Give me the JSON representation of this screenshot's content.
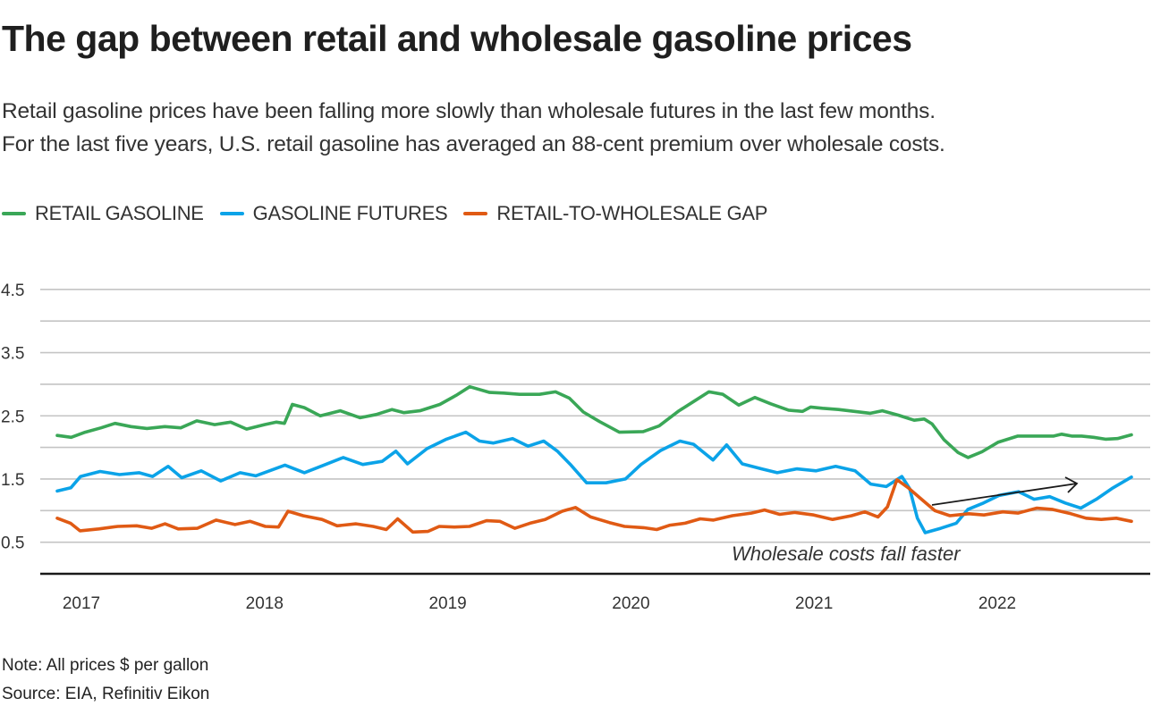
{
  "header": {
    "title": "The gap between retail and wholesale gasoline prices",
    "subtitle_line1": "Retail gasoline prices have been falling more slowly than wholesale futures in the last few months.",
    "subtitle_line2": "For the last five years, U.S. retail gasoline has averaged an 88-cent premium over wholesale costs."
  },
  "footer": {
    "note": "Note: All prices $ per gallon",
    "source": "Source: EIA, Refinitiv Eikon"
  },
  "chart_data": {
    "type": "line",
    "title": "The gap between retail and wholesale gasoline prices",
    "xlabel": "",
    "ylabel": "$ per gallon",
    "xlim": [
      2016.85,
      2022.8
    ],
    "ylim": [
      0,
      5
    ],
    "y_ticks": [
      0.5,
      1.5,
      2.5,
      3.5,
      4.5
    ],
    "y_gridlines": [
      0.5,
      1.0,
      1.5,
      2.0,
      2.5,
      3.0,
      3.5,
      4.0,
      4.5
    ],
    "x_ticks": [
      2017,
      2018,
      2019,
      2020,
      2021,
      2022
    ],
    "x_tick_labels": [
      "2017",
      "2018",
      "2019",
      "2020",
      "2021",
      "2022"
    ],
    "grid": true,
    "legend_position": "top-left",
    "annotation": {
      "text": "Wholesale costs fall faster",
      "arrow_from": [
        2021.65,
        0.75
      ],
      "arrow_to": [
        2022.45,
        1.42
      ]
    },
    "series": [
      {
        "name": "RETAIL GASOLINE",
        "color": "#3aa757",
        "points": [
          [
            2016.88,
            2.19
          ],
          [
            2016.95,
            2.16
          ],
          [
            2017.02,
            2.24
          ],
          [
            2017.1,
            2.31
          ],
          [
            2017.17,
            2.38
          ],
          [
            2017.25,
            2.33
          ],
          [
            2017.33,
            2.3
          ],
          [
            2017.42,
            2.33
          ],
          [
            2017.5,
            2.31
          ],
          [
            2017.58,
            2.42
          ],
          [
            2017.67,
            2.36
          ],
          [
            2017.75,
            2.4
          ],
          [
            2017.83,
            2.29
          ],
          [
            2017.92,
            2.36
          ],
          [
            2017.98,
            2.4
          ],
          [
            2018.02,
            2.38
          ],
          [
            2018.06,
            2.68
          ],
          [
            2018.12,
            2.63
          ],
          [
            2018.2,
            2.5
          ],
          [
            2018.3,
            2.58
          ],
          [
            2018.4,
            2.47
          ],
          [
            2018.48,
            2.52
          ],
          [
            2018.56,
            2.6
          ],
          [
            2018.62,
            2.55
          ],
          [
            2018.7,
            2.58
          ],
          [
            2018.8,
            2.68
          ],
          [
            2018.88,
            2.82
          ],
          [
            2018.95,
            2.96
          ],
          [
            2019.05,
            2.87
          ],
          [
            2019.12,
            2.86
          ],
          [
            2019.2,
            2.84
          ],
          [
            2019.3,
            2.84
          ],
          [
            2019.38,
            2.88
          ],
          [
            2019.45,
            2.78
          ],
          [
            2019.52,
            2.56
          ],
          [
            2019.6,
            2.41
          ],
          [
            2019.7,
            2.24
          ],
          [
            2019.82,
            2.25
          ],
          [
            2019.9,
            2.34
          ],
          [
            2020.0,
            2.58
          ],
          [
            2020.08,
            2.74
          ],
          [
            2020.15,
            2.88
          ],
          [
            2020.22,
            2.84
          ],
          [
            2020.3,
            2.67
          ],
          [
            2020.38,
            2.79
          ],
          [
            2020.46,
            2.69
          ],
          [
            2020.55,
            2.59
          ],
          [
            2020.62,
            2.57
          ],
          [
            2020.66,
            2.64
          ],
          [
            2020.72,
            2.62
          ],
          [
            2020.8,
            2.6
          ],
          [
            2020.88,
            2.57
          ],
          [
            2020.96,
            2.54
          ],
          [
            2021.02,
            2.58
          ],
          [
            2021.1,
            2.51
          ],
          [
            2021.18,
            2.43
          ],
          [
            2021.23,
            2.45
          ],
          [
            2021.27,
            2.37
          ],
          [
            2021.33,
            2.12
          ],
          [
            2021.4,
            1.92
          ],
          [
            2021.45,
            1.84
          ],
          [
            2021.52,
            1.93
          ],
          [
            2021.6,
            2.08
          ],
          [
            2021.7,
            2.18
          ],
          [
            2021.8,
            2.18
          ],
          [
            2021.88,
            2.18
          ],
          [
            2021.92,
            2.21
          ],
          [
            2021.97,
            2.18
          ],
          [
            2022.02,
            2.18
          ],
          [
            2022.08,
            2.16
          ],
          [
            2022.14,
            2.13
          ],
          [
            2022.2,
            2.14
          ],
          [
            2022.27,
            2.2
          ]
        ]
      },
      {
        "name": "GASOLINE FUTURES",
        "color": "#0ba3e8",
        "points": [
          [
            2016.88,
            1.31
          ],
          [
            2016.95,
            1.36
          ],
          [
            2017.0,
            1.54
          ],
          [
            2017.1,
            1.62
          ],
          [
            2017.2,
            1.57
          ],
          [
            2017.3,
            1.6
          ],
          [
            2017.37,
            1.54
          ],
          [
            2017.45,
            1.7
          ],
          [
            2017.52,
            1.52
          ],
          [
            2017.62,
            1.63
          ],
          [
            2017.72,
            1.47
          ],
          [
            2017.82,
            1.6
          ],
          [
            2017.9,
            1.55
          ],
          [
            2017.98,
            1.64
          ],
          [
            2018.05,
            1.72
          ],
          [
            2018.15,
            1.6
          ],
          [
            2018.25,
            1.72
          ],
          [
            2018.35,
            1.84
          ],
          [
            2018.45,
            1.73
          ],
          [
            2018.55,
            1.78
          ],
          [
            2018.62,
            1.94
          ],
          [
            2018.68,
            1.74
          ],
          [
            2018.78,
            1.98
          ],
          [
            2018.88,
            2.13
          ],
          [
            2018.98,
            2.24
          ],
          [
            2019.05,
            2.1
          ],
          [
            2019.12,
            2.07
          ],
          [
            2019.22,
            2.14
          ],
          [
            2019.3,
            2.02
          ],
          [
            2019.38,
            2.1
          ],
          [
            2019.45,
            1.94
          ],
          [
            2019.52,
            1.72
          ],
          [
            2019.6,
            1.44
          ],
          [
            2019.7,
            1.44
          ],
          [
            2019.8,
            1.5
          ],
          [
            2019.88,
            1.73
          ],
          [
            2019.98,
            1.95
          ],
          [
            2020.08,
            2.1
          ],
          [
            2020.15,
            2.05
          ],
          [
            2020.25,
            1.8
          ],
          [
            2020.32,
            2.04
          ],
          [
            2020.4,
            1.74
          ],
          [
            2020.5,
            1.66
          ],
          [
            2020.58,
            1.6
          ],
          [
            2020.68,
            1.66
          ],
          [
            2020.78,
            1.63
          ],
          [
            2020.88,
            1.7
          ],
          [
            2020.98,
            1.63
          ],
          [
            2021.06,
            1.42
          ],
          [
            2021.14,
            1.38
          ],
          [
            2021.22,
            1.54
          ],
          [
            2021.26,
            1.35
          ],
          [
            2021.3,
            0.88
          ],
          [
            2021.34,
            0.65
          ],
          [
            2021.42,
            0.72
          ],
          [
            2021.5,
            0.8
          ],
          [
            2021.56,
            1.02
          ],
          [
            2021.64,
            1.12
          ],
          [
            2021.72,
            1.24
          ],
          [
            2021.82,
            1.3
          ],
          [
            2021.9,
            1.18
          ],
          [
            2021.98,
            1.22
          ],
          [
            2022.06,
            1.12
          ],
          [
            2022.14,
            1.04
          ],
          [
            2022.22,
            1.18
          ],
          [
            2022.3,
            1.35
          ],
          [
            2022.4,
            1.53
          ]
        ]
      },
      {
        "name": "RETAIL-TO-WHOLESALE GAP",
        "color": "#e05a14",
        "points": [
          [
            2016.88,
            0.88
          ],
          [
            2016.95,
            0.8
          ],
          [
            2017.0,
            0.68
          ],
          [
            2017.1,
            0.71
          ],
          [
            2017.2,
            0.75
          ],
          [
            2017.3,
            0.76
          ],
          [
            2017.38,
            0.72
          ],
          [
            2017.45,
            0.79
          ],
          [
            2017.52,
            0.71
          ],
          [
            2017.62,
            0.72
          ],
          [
            2017.72,
            0.85
          ],
          [
            2017.82,
            0.78
          ],
          [
            2017.9,
            0.83
          ],
          [
            2017.98,
            0.75
          ],
          [
            2018.05,
            0.74
          ],
          [
            2018.1,
            0.99
          ],
          [
            2018.18,
            0.92
          ],
          [
            2018.28,
            0.86
          ],
          [
            2018.36,
            0.76
          ],
          [
            2018.46,
            0.79
          ],
          [
            2018.55,
            0.75
          ],
          [
            2018.62,
            0.7
          ],
          [
            2018.68,
            0.87
          ],
          [
            2018.76,
            0.66
          ],
          [
            2018.84,
            0.67
          ],
          [
            2018.9,
            0.75
          ],
          [
            2018.98,
            0.74
          ],
          [
            2019.06,
            0.75
          ],
          [
            2019.15,
            0.84
          ],
          [
            2019.22,
            0.83
          ],
          [
            2019.3,
            0.72
          ],
          [
            2019.38,
            0.8
          ],
          [
            2019.46,
            0.86
          ],
          [
            2019.55,
            0.99
          ],
          [
            2019.62,
            1.05
          ],
          [
            2019.7,
            0.9
          ],
          [
            2019.8,
            0.81
          ],
          [
            2019.88,
            0.75
          ],
          [
            2019.98,
            0.73
          ],
          [
            2020.05,
            0.7
          ],
          [
            2020.12,
            0.77
          ],
          [
            2020.2,
            0.8
          ],
          [
            2020.28,
            0.87
          ],
          [
            2020.35,
            0.85
          ],
          [
            2020.45,
            0.92
          ],
          [
            2020.55,
            0.96
          ],
          [
            2020.62,
            1.01
          ],
          [
            2020.7,
            0.94
          ],
          [
            2020.78,
            0.97
          ],
          [
            2020.88,
            0.93
          ],
          [
            2020.98,
            0.86
          ],
          [
            2021.08,
            0.92
          ],
          [
            2021.15,
            0.98
          ],
          [
            2021.22,
            0.9
          ],
          [
            2021.27,
            1.06
          ],
          [
            2021.32,
            1.49
          ],
          [
            2021.38,
            1.36
          ],
          [
            2021.45,
            1.18
          ],
          [
            2021.52,
            1.0
          ],
          [
            2021.6,
            0.92
          ],
          [
            2021.7,
            0.95
          ],
          [
            2021.78,
            0.93
          ],
          [
            2021.88,
            0.98
          ],
          [
            2021.96,
            0.96
          ],
          [
            2022.06,
            1.04
          ],
          [
            2022.14,
            1.02
          ],
          [
            2022.24,
            0.95
          ],
          [
            2022.32,
            0.88
          ],
          [
            2022.4,
            0.86
          ],
          [
            2022.48,
            0.88
          ],
          [
            2022.56,
            0.83
          ]
        ]
      }
    ]
  }
}
